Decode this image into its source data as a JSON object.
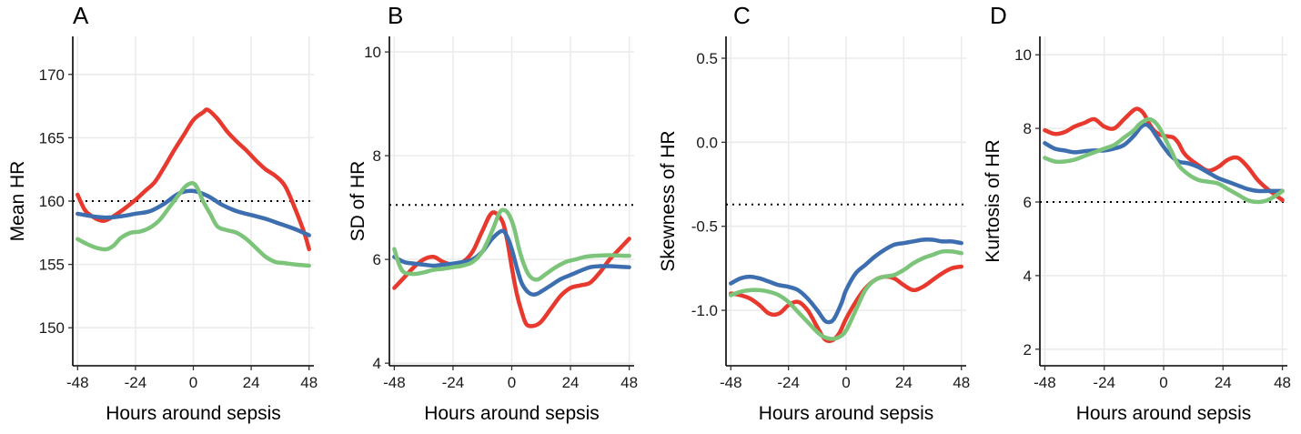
{
  "chart_data": [
    {
      "type": "line",
      "panel_label": "A",
      "xlabel": "Hours around sepsis",
      "ylabel": "Mean HR",
      "xlim": [
        -50,
        50
      ],
      "ylim": [
        147,
        173
      ],
      "xticks": [
        -48,
        -24,
        0,
        24,
        48
      ],
      "yticks": [
        150,
        155,
        160,
        165,
        170
      ],
      "reference_y": 160,
      "grid": true,
      "series": [
        {
          "color": "#E8392E",
          "x": [
            -48,
            -45,
            -42,
            -39,
            -36,
            -30,
            -24,
            -20,
            -16,
            -12,
            -8,
            -4,
            0,
            4,
            6,
            10,
            14,
            18,
            22,
            26,
            30,
            34,
            38,
            42,
            46,
            48
          ],
          "y": [
            160.5,
            159.3,
            158.8,
            158.5,
            158.5,
            159.2,
            160.1,
            160.8,
            161.5,
            162.7,
            164.0,
            165.2,
            166.4,
            167.0,
            167.2,
            166.5,
            165.5,
            164.7,
            164.0,
            163.2,
            162.5,
            162.0,
            161.2,
            159.5,
            157.5,
            156.2
          ]
        },
        {
          "color": "#3C6EB0",
          "x": [
            -48,
            -42,
            -36,
            -30,
            -24,
            -18,
            -12,
            -6,
            0,
            6,
            12,
            18,
            24,
            30,
            36,
            42,
            48
          ],
          "y": [
            159.0,
            158.8,
            158.7,
            158.8,
            159.0,
            159.2,
            159.8,
            160.6,
            160.8,
            160.4,
            159.7,
            159.2,
            158.9,
            158.6,
            158.2,
            157.8,
            157.3
          ]
        },
        {
          "color": "#7CC47A",
          "x": [
            -48,
            -44,
            -40,
            -36,
            -33,
            -30,
            -26,
            -22,
            -18,
            -14,
            -10,
            -6,
            -3,
            0,
            2,
            4,
            7,
            10,
            14,
            18,
            22,
            26,
            30,
            34,
            38,
            42,
            48
          ],
          "y": [
            157.0,
            156.6,
            156.3,
            156.2,
            156.5,
            157.1,
            157.5,
            157.6,
            157.9,
            158.5,
            159.5,
            160.5,
            161.2,
            161.4,
            160.9,
            160.0,
            159.0,
            158.0,
            157.7,
            157.5,
            157.0,
            156.3,
            155.6,
            155.2,
            155.1,
            155.0,
            154.9
          ]
        }
      ]
    },
    {
      "type": "line",
      "panel_label": "B",
      "xlabel": "Hours around sepsis",
      "ylabel": "SD of HR",
      "xlim": [
        -50,
        50
      ],
      "ylim": [
        3.95,
        10.3
      ],
      "xticks": [
        -48,
        -24,
        0,
        24,
        48
      ],
      "yticks": [
        4,
        6,
        8,
        10
      ],
      "reference_y": 7.05,
      "grid": true,
      "series": [
        {
          "color": "#E8392E",
          "x": [
            -48,
            -44,
            -40,
            -36,
            -32,
            -28,
            -24,
            -20,
            -16,
            -12,
            -8,
            -4,
            -2,
            0,
            2,
            4,
            6,
            9,
            12,
            16,
            20,
            24,
            28,
            32,
            36,
            40,
            44,
            48
          ],
          "y": [
            5.45,
            5.65,
            5.85,
            6.0,
            6.05,
            5.95,
            5.9,
            5.95,
            6.15,
            6.55,
            6.9,
            6.75,
            6.4,
            5.85,
            5.35,
            5.0,
            4.75,
            4.72,
            4.8,
            5.05,
            5.3,
            5.45,
            5.5,
            5.55,
            5.75,
            6.0,
            6.2,
            6.4
          ]
        },
        {
          "color": "#3C6EB0",
          "x": [
            -48,
            -44,
            -40,
            -36,
            -32,
            -28,
            -24,
            -20,
            -16,
            -12,
            -8,
            -4,
            -2,
            0,
            2,
            4,
            6,
            8,
            10,
            12,
            16,
            20,
            24,
            28,
            32,
            36,
            40,
            44,
            48
          ],
          "y": [
            6.05,
            5.95,
            5.92,
            5.9,
            5.88,
            5.9,
            5.92,
            5.95,
            6.0,
            6.15,
            6.4,
            6.55,
            6.45,
            6.2,
            5.85,
            5.55,
            5.4,
            5.33,
            5.33,
            5.38,
            5.5,
            5.62,
            5.7,
            5.78,
            5.85,
            5.87,
            5.87,
            5.86,
            5.85
          ]
        },
        {
          "color": "#7CC47A",
          "x": [
            -48,
            -46,
            -44,
            -40,
            -36,
            -32,
            -28,
            -24,
            -20,
            -16,
            -12,
            -8,
            -5,
            -3,
            -1,
            1,
            3,
            5,
            7,
            9,
            11,
            14,
            18,
            22,
            26,
            30,
            34,
            38,
            42,
            46,
            48
          ],
          "y": [
            6.2,
            5.9,
            5.75,
            5.72,
            5.75,
            5.8,
            5.82,
            5.85,
            5.88,
            5.95,
            6.15,
            6.55,
            6.9,
            6.95,
            6.85,
            6.6,
            6.2,
            5.9,
            5.7,
            5.62,
            5.62,
            5.72,
            5.85,
            5.95,
            6.0,
            6.05,
            6.07,
            6.08,
            6.08,
            6.07,
            6.07
          ]
        }
      ]
    },
    {
      "type": "line",
      "panel_label": "C",
      "xlabel": "Hours around sepsis",
      "ylabel": "Skewness of HR",
      "xlim": [
        -50,
        50
      ],
      "ylim": [
        -1.33,
        0.63
      ],
      "xticks": [
        -48,
        -24,
        0,
        24,
        48
      ],
      "yticks": [
        -1.0,
        -0.5,
        0.0,
        0.5
      ],
      "ytick_labels": [
        "-1.0",
        "-0.5",
        "0.0",
        "0.5"
      ],
      "reference_y": -0.37,
      "grid": true,
      "series": [
        {
          "color": "#E8392E",
          "x": [
            -48,
            -44,
            -40,
            -36,
            -32,
            -28,
            -24,
            -20,
            -16,
            -12,
            -9,
            -6,
            -3,
            0,
            4,
            8,
            12,
            16,
            20,
            24,
            28,
            32,
            36,
            40,
            44,
            48
          ],
          "y": [
            -0.9,
            -0.91,
            -0.93,
            -0.97,
            -1.02,
            -1.02,
            -0.97,
            -0.95,
            -1.0,
            -1.1,
            -1.17,
            -1.18,
            -1.14,
            -1.05,
            -0.95,
            -0.87,
            -0.82,
            -0.8,
            -0.81,
            -0.85,
            -0.88,
            -0.86,
            -0.82,
            -0.78,
            -0.75,
            -0.74
          ]
        },
        {
          "color": "#3C6EB0",
          "x": [
            -48,
            -44,
            -40,
            -36,
            -32,
            -28,
            -24,
            -20,
            -16,
            -12,
            -9,
            -7,
            -5,
            -2,
            0,
            4,
            8,
            12,
            16,
            20,
            24,
            28,
            32,
            36,
            40,
            44,
            48
          ],
          "y": [
            -0.84,
            -0.81,
            -0.8,
            -0.81,
            -0.83,
            -0.85,
            -0.86,
            -0.88,
            -0.93,
            -1.0,
            -1.06,
            -1.07,
            -1.05,
            -0.96,
            -0.88,
            -0.78,
            -0.73,
            -0.68,
            -0.64,
            -0.61,
            -0.6,
            -0.59,
            -0.58,
            -0.58,
            -0.59,
            -0.59,
            -0.6
          ]
        },
        {
          "color": "#7CC47A",
          "x": [
            -48,
            -44,
            -40,
            -36,
            -32,
            -28,
            -24,
            -20,
            -16,
            -12,
            -9,
            -6,
            -3,
            0,
            4,
            8,
            12,
            16,
            20,
            24,
            28,
            32,
            36,
            40,
            44,
            48
          ],
          "y": [
            -0.91,
            -0.89,
            -0.88,
            -0.88,
            -0.89,
            -0.91,
            -0.95,
            -1.01,
            -1.07,
            -1.13,
            -1.16,
            -1.17,
            -1.16,
            -1.12,
            -1.0,
            -0.88,
            -0.82,
            -0.8,
            -0.79,
            -0.76,
            -0.72,
            -0.69,
            -0.67,
            -0.65,
            -0.65,
            -0.66
          ]
        }
      ]
    },
    {
      "type": "line",
      "panel_label": "D",
      "xlabel": "Hours around sepsis",
      "ylabel": "Kurtosis of HR",
      "xlim": [
        -50,
        50
      ],
      "ylim": [
        1.55,
        10.5
      ],
      "xticks": [
        -48,
        -24,
        0,
        24,
        48
      ],
      "yticks": [
        2,
        4,
        6,
        8,
        10
      ],
      "reference_y": 6,
      "grid": true,
      "series": [
        {
          "color": "#E8392E",
          "x": [
            -48,
            -44,
            -40,
            -36,
            -32,
            -28,
            -24,
            -20,
            -16,
            -12,
            -10,
            -8,
            -6,
            -4,
            -2,
            0,
            2,
            4,
            6,
            8,
            10,
            14,
            18,
            22,
            26,
            30,
            34,
            38,
            42,
            46,
            48
          ],
          "y": [
            7.95,
            7.85,
            7.9,
            8.05,
            8.15,
            8.25,
            8.05,
            8.0,
            8.25,
            8.5,
            8.52,
            8.4,
            8.15,
            7.95,
            7.85,
            7.8,
            7.78,
            7.75,
            7.6,
            7.35,
            7.2,
            7.0,
            6.85,
            6.95,
            7.15,
            7.2,
            6.95,
            6.6,
            6.35,
            6.15,
            6.05
          ]
        },
        {
          "color": "#3C6EB0",
          "x": [
            -48,
            -44,
            -40,
            -36,
            -32,
            -28,
            -24,
            -20,
            -16,
            -12,
            -9,
            -7,
            -5,
            -3,
            0,
            3,
            6,
            10,
            14,
            18,
            22,
            26,
            30,
            34,
            38,
            42,
            46,
            48
          ],
          "y": [
            7.6,
            7.45,
            7.4,
            7.35,
            7.38,
            7.4,
            7.4,
            7.45,
            7.55,
            7.8,
            8.05,
            8.1,
            8.0,
            7.8,
            7.5,
            7.25,
            7.1,
            7.05,
            6.95,
            6.8,
            6.65,
            6.55,
            6.45,
            6.35,
            6.3,
            6.3,
            6.3,
            6.3
          ]
        },
        {
          "color": "#7CC47A",
          "x": [
            -48,
            -44,
            -40,
            -36,
            -32,
            -28,
            -24,
            -20,
            -16,
            -12,
            -10,
            -8,
            -6,
            -4,
            -2,
            0,
            3,
            6,
            10,
            14,
            18,
            22,
            26,
            30,
            34,
            38,
            42,
            46,
            48
          ],
          "y": [
            7.2,
            7.1,
            7.1,
            7.15,
            7.25,
            7.35,
            7.45,
            7.55,
            7.75,
            7.95,
            8.1,
            8.2,
            8.25,
            8.2,
            8.05,
            7.8,
            7.4,
            7.0,
            6.75,
            6.6,
            6.55,
            6.5,
            6.35,
            6.2,
            6.05,
            6.0,
            6.05,
            6.2,
            6.3
          ]
        }
      ]
    }
  ]
}
